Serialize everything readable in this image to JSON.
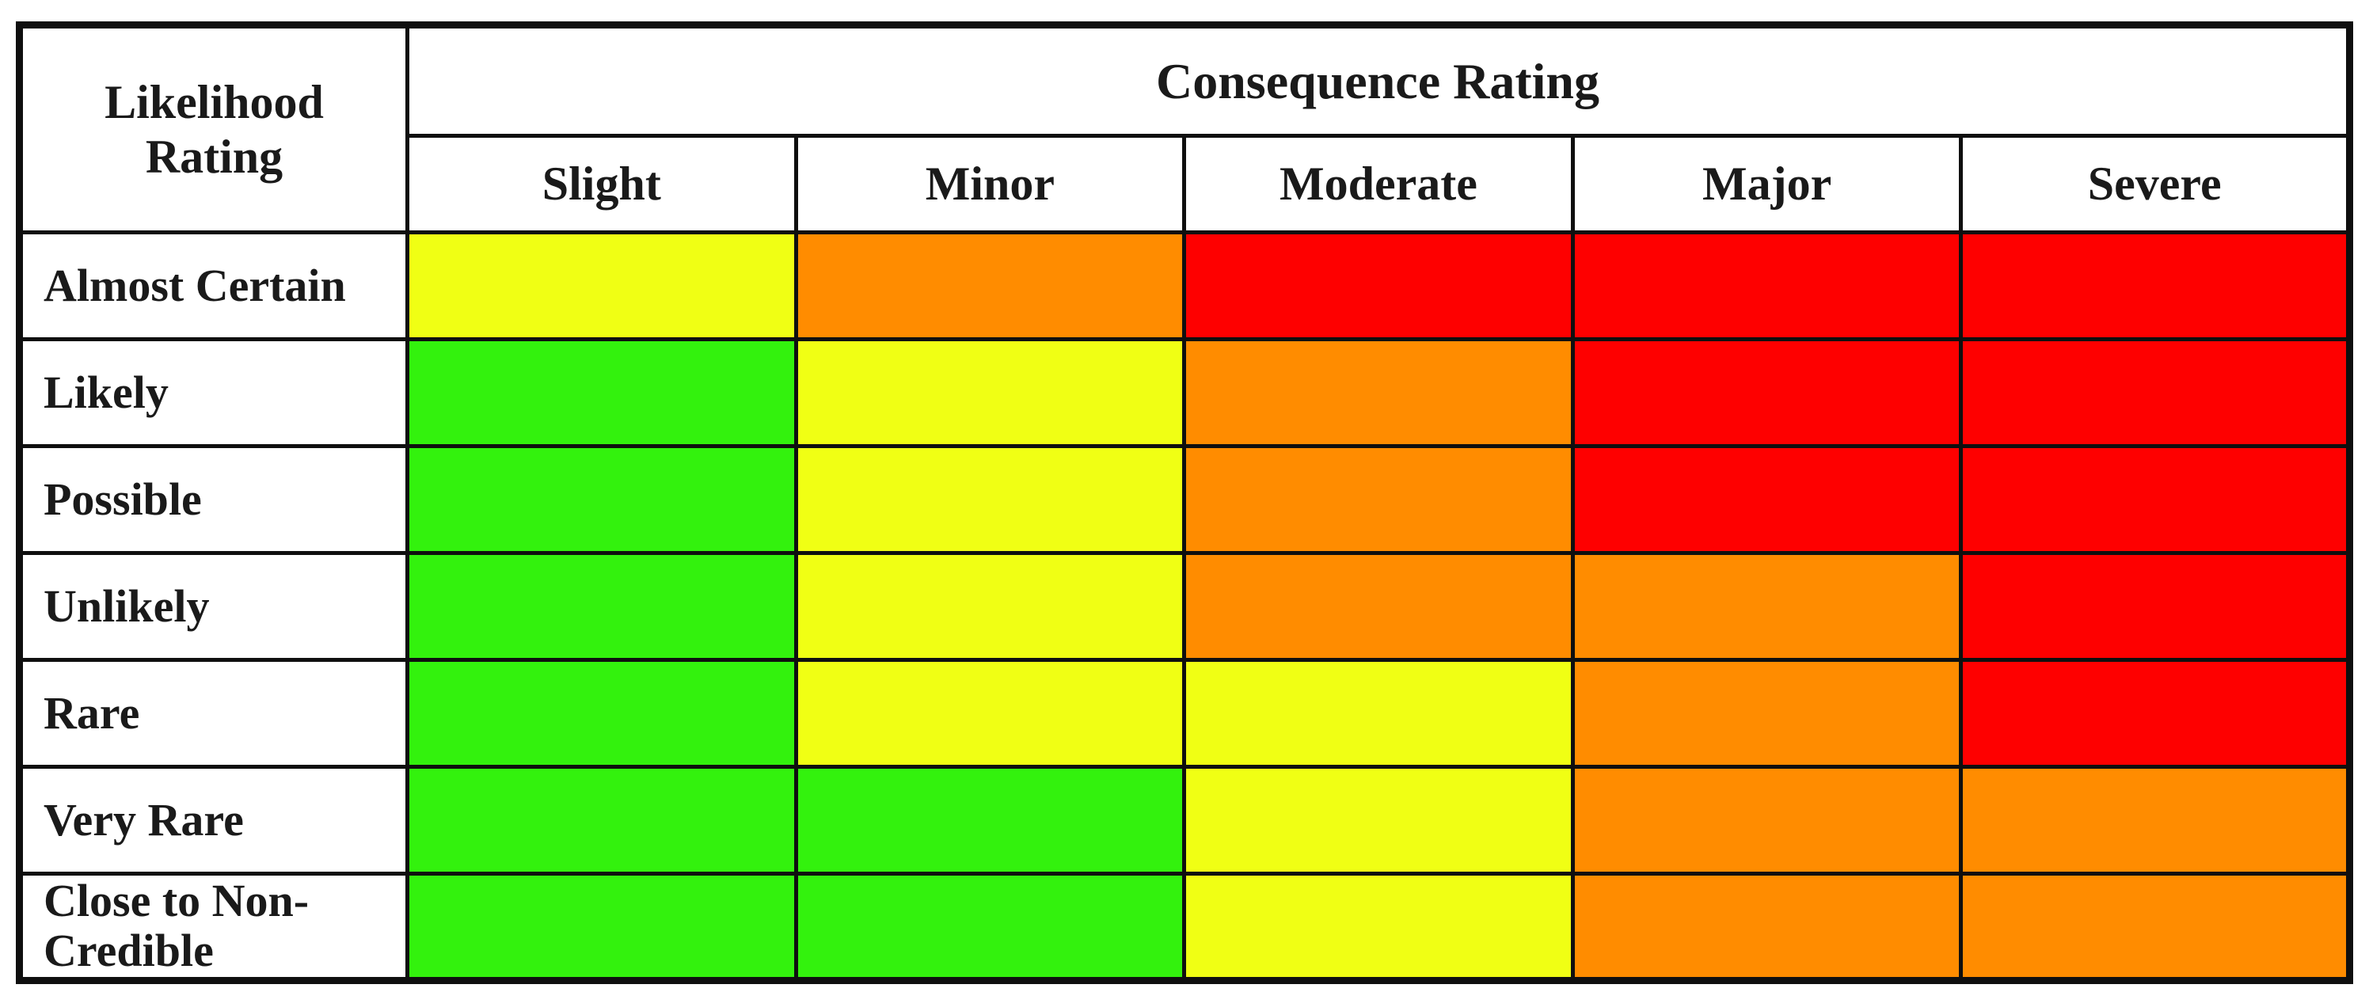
{
  "header": {
    "likelihood_label": "Likelihood Rating",
    "consequence_label": "Consequence Rating"
  },
  "chart_data": {
    "type": "heatmap",
    "title": "Risk matrix: Likelihood Rating vs Consequence Rating",
    "x_axis_label": "Consequence Rating",
    "y_axis_label": "Likelihood Rating",
    "columns": [
      "Slight",
      "Minor",
      "Moderate",
      "Major",
      "Severe"
    ],
    "rows": [
      "Almost Certain",
      "Likely",
      "Possible",
      "Unlikely",
      "Rare",
      "Very Rare",
      "Close to Non-Credible"
    ],
    "cell_colors": [
      [
        "yellow",
        "orange",
        "red",
        "red",
        "red"
      ],
      [
        "green",
        "yellow",
        "orange",
        "red",
        "red"
      ],
      [
        "green",
        "yellow",
        "orange",
        "red",
        "red"
      ],
      [
        "green",
        "yellow",
        "orange",
        "orange",
        "red"
      ],
      [
        "green",
        "yellow",
        "yellow",
        "orange",
        "red"
      ],
      [
        "green",
        "green",
        "yellow",
        "orange",
        "orange"
      ],
      [
        "green",
        "green",
        "yellow",
        "orange",
        "orange"
      ]
    ],
    "palette": {
      "green": "#33F20D",
      "yellow": "#F0FF14",
      "orange": "#FF8C00",
      "red": "#FE0000"
    },
    "grid_color": "#0f0f0f",
    "legend_position": "none"
  }
}
